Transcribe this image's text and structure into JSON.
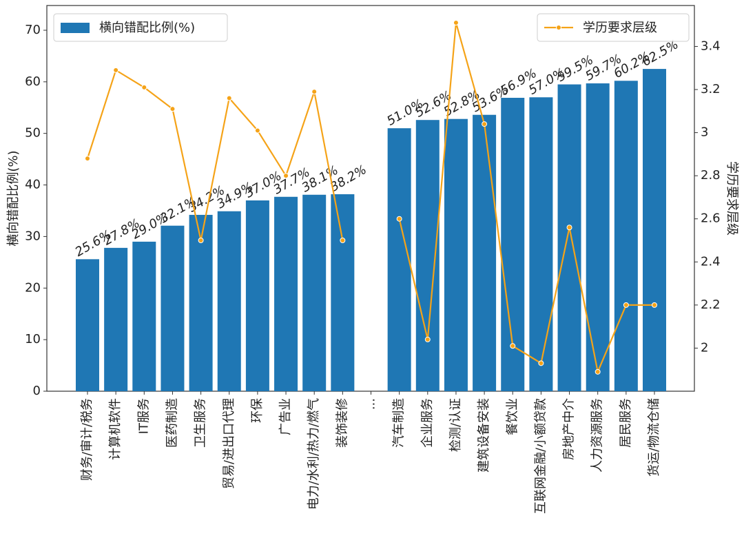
{
  "chart_data": {
    "type": "bar",
    "y_label": "横向错配比例(%)",
    "y2_label": "学历要求层级",
    "categories": [
      "财务/审计/税务",
      "计算机软件",
      "IT服务",
      "医药制造",
      "卫生服务",
      "贸易/进出口代理",
      "环保",
      "广告业",
      "电力/水利/热力/燃气",
      "装饰装修",
      "...",
      "汽车制造",
      "企业服务",
      "检测/认证",
      "建筑设备安装",
      "餐饮业",
      "互联网金融/小额贷款",
      "房地产中介",
      "人力资源服务",
      "居民服务",
      "货运/物流仓储"
    ],
    "series": [
      {
        "type": "bar",
        "name": "横向错配比例(%)",
        "color": "#1f77b4",
        "values": [
          25.6,
          27.8,
          29.0,
          32.1,
          34.2,
          34.9,
          37.0,
          37.7,
          38.1,
          38.2,
          null,
          51.0,
          52.6,
          52.8,
          53.6,
          56.9,
          57.0,
          59.5,
          59.7,
          60.2,
          62.5
        ],
        "value_labels": [
          "25.6%",
          "27.8%",
          "29.0%",
          "32.1%",
          "34.2%",
          "34.9%",
          "37.0%",
          "37.7%",
          "38.1%",
          "38.2%",
          null,
          "51.0%",
          "52.6%",
          "52.8%",
          "53.6%",
          "56.9%",
          "57.0%",
          "59.5%",
          "59.7%",
          "60.2%",
          "62.5%"
        ]
      },
      {
        "type": "line",
        "name": "学历要求层级",
        "color": "#f5a318",
        "axis": "y2",
        "values": [
          2.88,
          3.29,
          3.21,
          3.11,
          2.5,
          3.16,
          3.01,
          2.8,
          3.19,
          2.5,
          null,
          2.6,
          2.04,
          3.51,
          3.04,
          2.01,
          1.93,
          2.56,
          1.89,
          2.2,
          2.2
        ]
      }
    ],
    "ylim": [
      0,
      74.8
    ],
    "yticks": [
      0,
      10,
      20,
      30,
      40,
      50,
      60,
      70
    ],
    "y2lim": [
      1.8,
      3.59
    ],
    "y2ticks": [
      2.0,
      2.2,
      2.4,
      2.6,
      2.8,
      3.0,
      3.2,
      3.4
    ],
    "legend": [
      "upper left",
      "upper right"
    ]
  }
}
